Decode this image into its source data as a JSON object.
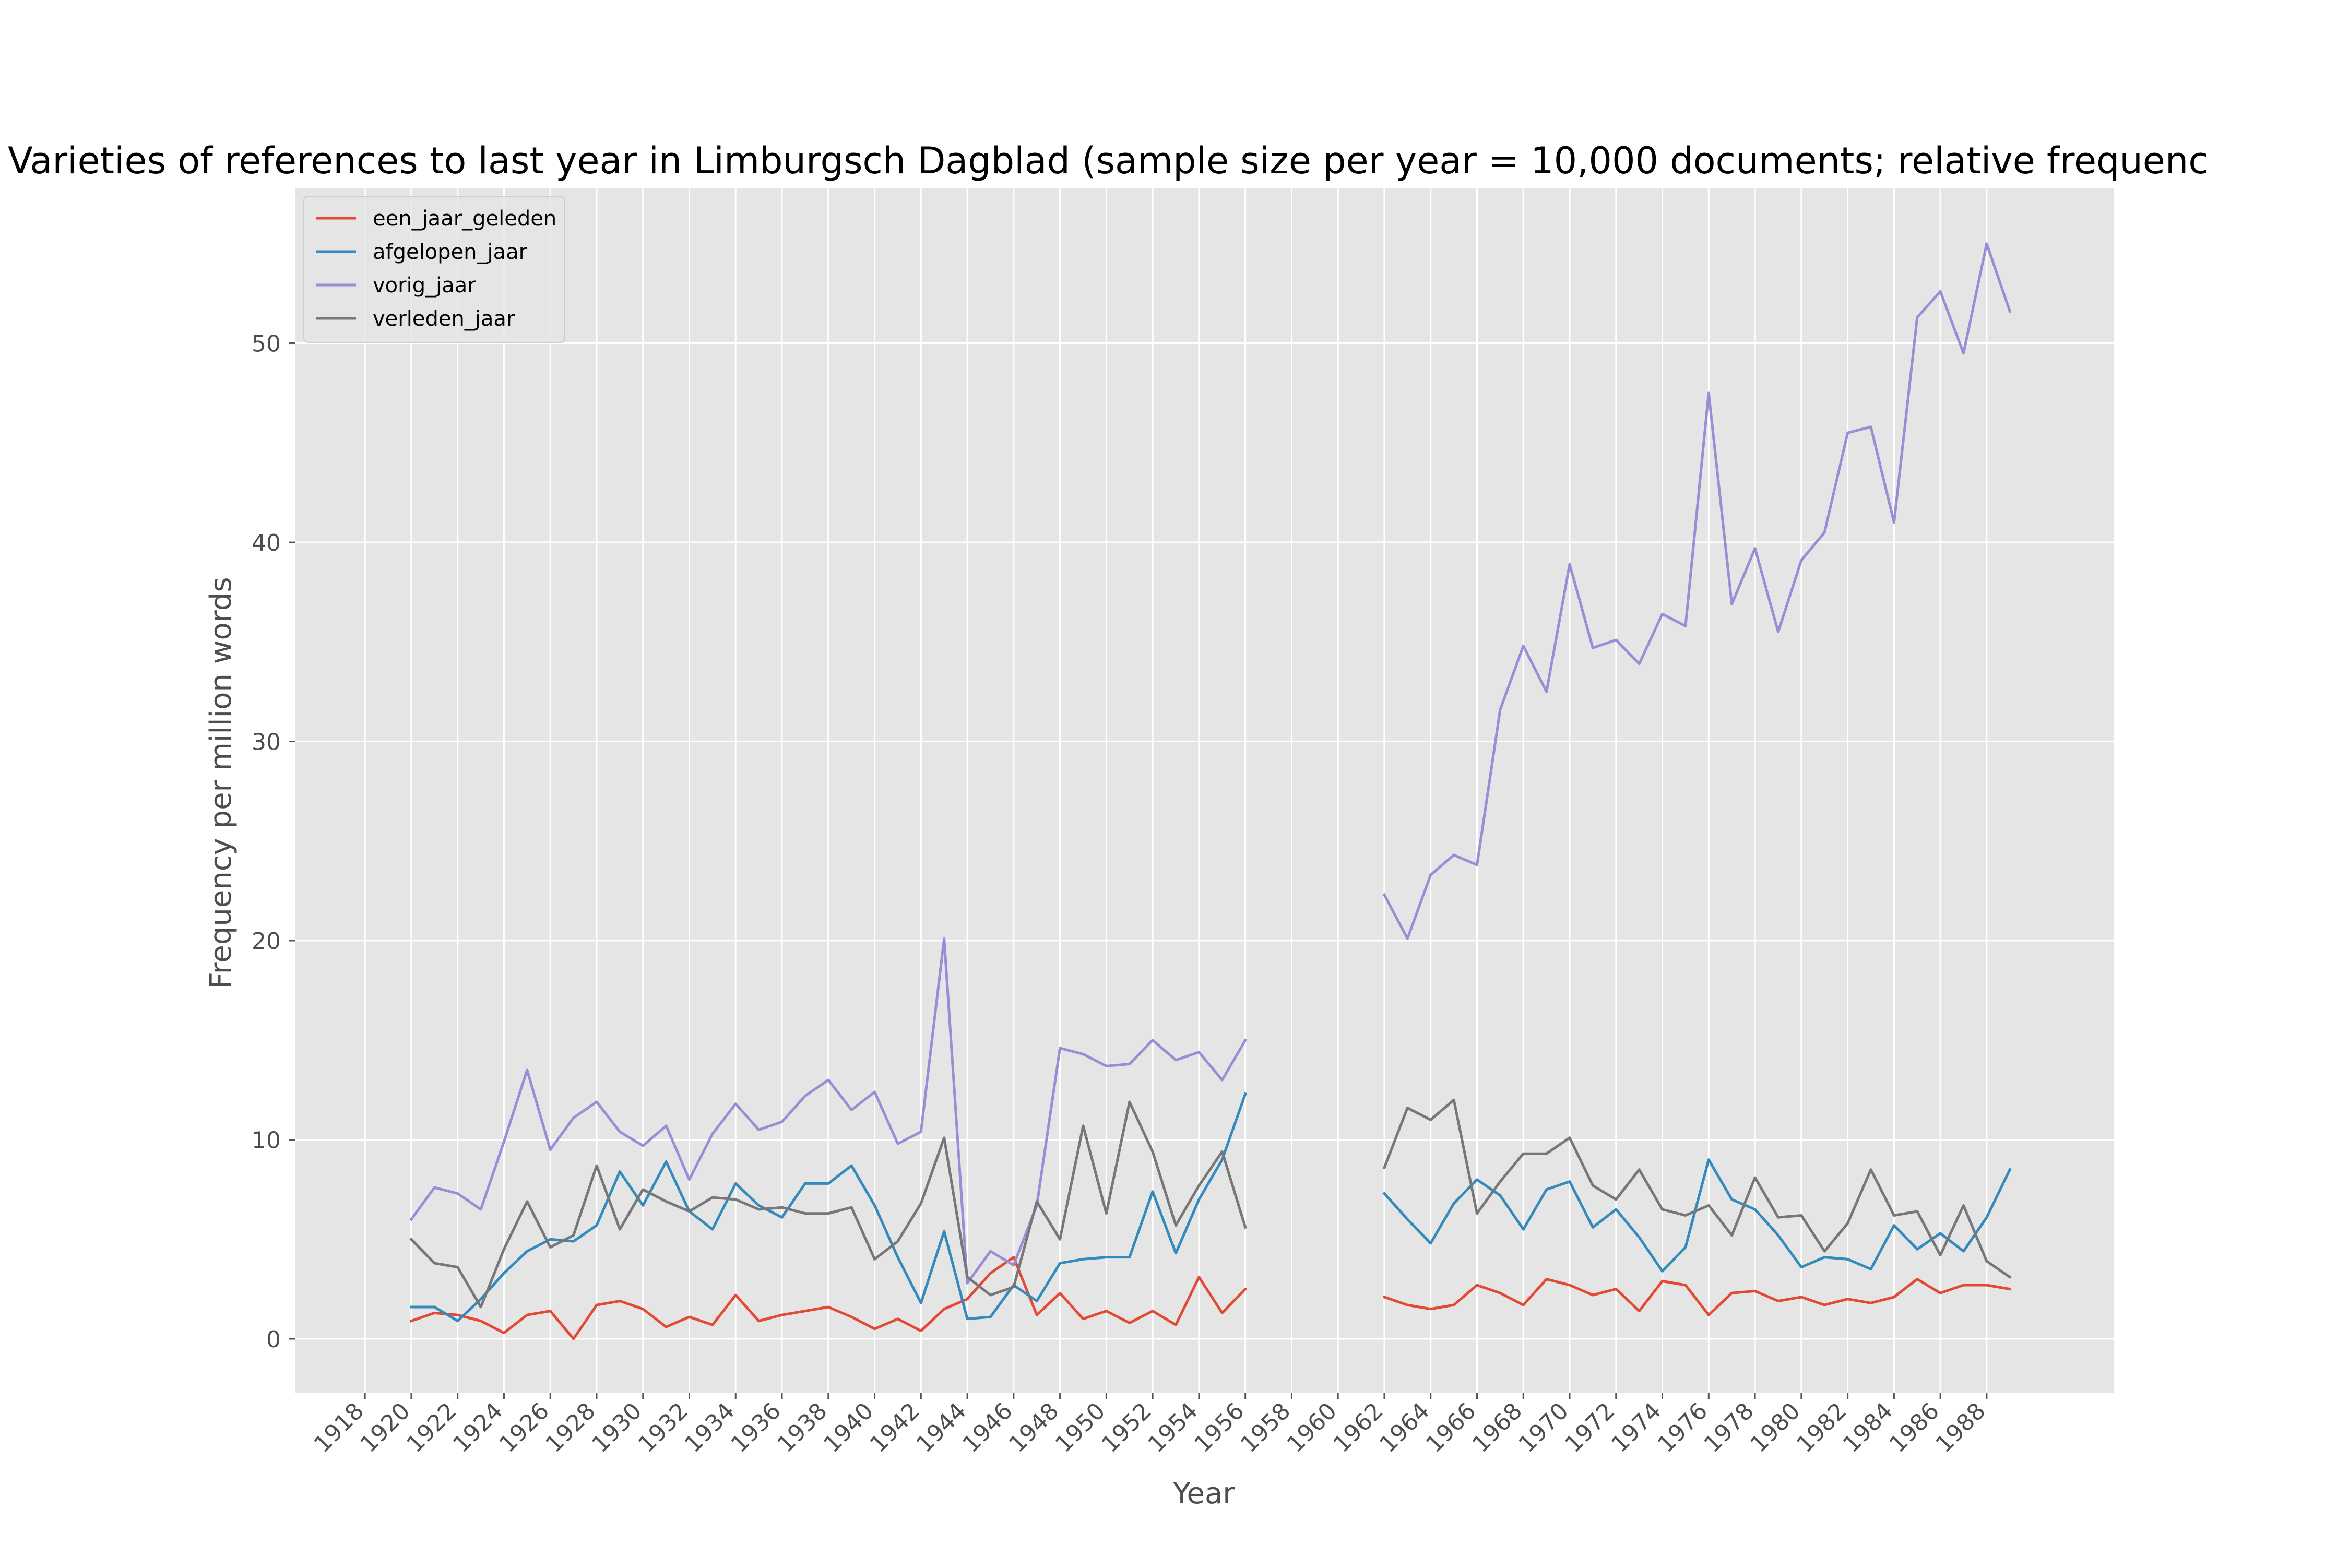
{
  "chart_data": {
    "type": "line",
    "title": "Varieties of references to last year in Limburgsch Dagblad (sample size per year = 10,000 documents; relative frequenc",
    "xlabel": "Year",
    "ylabel": "Frequency per million words",
    "xlim": [
      1915,
      1993.5
    ],
    "ylim": [
      -2.7,
      57.8
    ],
    "x_ticks": [
      1918,
      1920,
      1922,
      1924,
      1926,
      1928,
      1930,
      1932,
      1934,
      1936,
      1938,
      1940,
      1942,
      1944,
      1946,
      1948,
      1950,
      1952,
      1954,
      1956,
      1958,
      1960,
      1962,
      1964,
      1966,
      1968,
      1970,
      1972,
      1974,
      1976,
      1978,
      1980,
      1982,
      1984,
      1986,
      1988
    ],
    "x_tick_labels": [
      "1918",
      "1920",
      "1922",
      "1924",
      "1926",
      "1928",
      "1930",
      "1932",
      "1934",
      "1936",
      "1938",
      "1940",
      "1942",
      "1944",
      "1946",
      "1948",
      "1950",
      "1952",
      "1954",
      "1956",
      "1958",
      "1960",
      "1962",
      "1964",
      "1966",
      "1968",
      "1970",
      "1972",
      "1974",
      "1976",
      "1978",
      "1980",
      "1982",
      "1984",
      "1986",
      "1988"
    ],
    "y_ticks": [
      0,
      10,
      20,
      30,
      40,
      50
    ],
    "y_tick_labels": [
      "0",
      "10",
      "20",
      "30",
      "40",
      "50"
    ],
    "grid": true,
    "legend_position": "top-left",
    "background_color": "#e5e5e5",
    "series": [
      {
        "name": "een_jaar_geleden",
        "color": "#e24a33",
        "points": [
          [
            1920,
            0.9
          ],
          [
            1921,
            1.3
          ],
          [
            1922,
            1.2
          ],
          [
            1923,
            0.9
          ],
          [
            1924,
            0.3
          ],
          [
            1925,
            1.2
          ],
          [
            1926,
            1.4
          ],
          [
            1927,
            0.0
          ],
          [
            1928,
            1.7
          ],
          [
            1929,
            1.9
          ],
          [
            1930,
            1.5
          ],
          [
            1931,
            0.6
          ],
          [
            1932,
            1.1
          ],
          [
            1933,
            0.7
          ],
          [
            1934,
            2.2
          ],
          [
            1935,
            0.9
          ],
          [
            1936,
            1.2
          ],
          [
            1937,
            1.4
          ],
          [
            1938,
            1.6
          ],
          [
            1939,
            1.1
          ],
          [
            1940,
            0.5
          ],
          [
            1941,
            1.0
          ],
          [
            1942,
            0.4
          ],
          [
            1943,
            1.5
          ],
          [
            1944,
            2.0
          ],
          [
            1945,
            3.3
          ],
          [
            1946,
            4.1
          ],
          [
            1947,
            1.2
          ],
          [
            1948,
            2.3
          ],
          [
            1949,
            1.0
          ],
          [
            1950,
            1.4
          ],
          [
            1951,
            0.8
          ],
          [
            1952,
            1.4
          ],
          [
            1953,
            0.7
          ],
          [
            1954,
            3.1
          ],
          [
            1955,
            1.3
          ],
          [
            1956,
            2.5
          ],
          [
            1962,
            2.1
          ],
          [
            1963,
            1.7
          ],
          [
            1964,
            1.5
          ],
          [
            1965,
            1.7
          ],
          [
            1966,
            2.7
          ],
          [
            1967,
            2.3
          ],
          [
            1968,
            1.7
          ],
          [
            1969,
            3.0
          ],
          [
            1970,
            2.7
          ],
          [
            1971,
            2.2
          ],
          [
            1972,
            2.5
          ],
          [
            1973,
            1.4
          ],
          [
            1974,
            2.9
          ],
          [
            1975,
            2.7
          ],
          [
            1976,
            1.2
          ],
          [
            1977,
            2.3
          ],
          [
            1978,
            2.4
          ],
          [
            1979,
            1.9
          ],
          [
            1980,
            2.1
          ],
          [
            1981,
            1.7
          ],
          [
            1982,
            2.0
          ],
          [
            1983,
            1.8
          ],
          [
            1984,
            2.1
          ],
          [
            1985,
            3.0
          ],
          [
            1986,
            2.3
          ],
          [
            1987,
            2.7
          ],
          [
            1988,
            2.7
          ],
          [
            1989,
            2.5
          ]
        ]
      },
      {
        "name": "afgelopen_jaar",
        "color": "#348abd",
        "points": [
          [
            1920,
            1.6
          ],
          [
            1921,
            1.6
          ],
          [
            1922,
            0.9
          ],
          [
            1923,
            2.0
          ],
          [
            1924,
            3.3
          ],
          [
            1925,
            4.4
          ],
          [
            1926,
            5.0
          ],
          [
            1927,
            4.9
          ],
          [
            1928,
            5.7
          ],
          [
            1929,
            8.4
          ],
          [
            1930,
            6.7
          ],
          [
            1931,
            8.9
          ],
          [
            1932,
            6.4
          ],
          [
            1933,
            5.5
          ],
          [
            1934,
            7.8
          ],
          [
            1935,
            6.7
          ],
          [
            1936,
            6.1
          ],
          [
            1937,
            7.8
          ],
          [
            1938,
            7.8
          ],
          [
            1939,
            8.7
          ],
          [
            1940,
            6.7
          ],
          [
            1941,
            4.1
          ],
          [
            1942,
            1.8
          ],
          [
            1943,
            5.4
          ],
          [
            1944,
            1.0
          ],
          [
            1945,
            1.1
          ],
          [
            1946,
            2.7
          ],
          [
            1947,
            1.9
          ],
          [
            1948,
            3.8
          ],
          [
            1949,
            4.0
          ],
          [
            1950,
            4.1
          ],
          [
            1951,
            4.1
          ],
          [
            1952,
            7.4
          ],
          [
            1953,
            4.3
          ],
          [
            1954,
            7.0
          ],
          [
            1955,
            9.0
          ],
          [
            1956,
            12.3
          ],
          [
            1962,
            7.3
          ],
          [
            1963,
            6.0
          ],
          [
            1964,
            4.8
          ],
          [
            1965,
            6.8
          ],
          [
            1966,
            8.0
          ],
          [
            1967,
            7.2
          ],
          [
            1968,
            5.5
          ],
          [
            1969,
            7.5
          ],
          [
            1970,
            7.9
          ],
          [
            1971,
            5.6
          ],
          [
            1972,
            6.5
          ],
          [
            1973,
            5.1
          ],
          [
            1974,
            3.4
          ],
          [
            1975,
            4.6
          ],
          [
            1976,
            9.0
          ],
          [
            1977,
            7.0
          ],
          [
            1978,
            6.5
          ],
          [
            1979,
            5.2
          ],
          [
            1980,
            3.6
          ],
          [
            1981,
            4.1
          ],
          [
            1982,
            4.0
          ],
          [
            1983,
            3.5
          ],
          [
            1984,
            5.7
          ],
          [
            1985,
            4.5
          ],
          [
            1986,
            5.3
          ],
          [
            1987,
            4.4
          ],
          [
            1988,
            6.1
          ],
          [
            1989,
            8.5
          ]
        ]
      },
      {
        "name": "vorig_jaar",
        "color": "#988ed5",
        "points": [
          [
            1920,
            6.0
          ],
          [
            1921,
            7.6
          ],
          [
            1922,
            7.3
          ],
          [
            1923,
            6.5
          ],
          [
            1924,
            9.9
          ],
          [
            1925,
            13.5
          ],
          [
            1926,
            9.5
          ],
          [
            1927,
            11.1
          ],
          [
            1928,
            11.9
          ],
          [
            1929,
            10.4
          ],
          [
            1930,
            9.7
          ],
          [
            1931,
            10.7
          ],
          [
            1932,
            8.0
          ],
          [
            1933,
            10.3
          ],
          [
            1934,
            11.8
          ],
          [
            1935,
            10.5
          ],
          [
            1936,
            10.9
          ],
          [
            1937,
            12.2
          ],
          [
            1938,
            13.0
          ],
          [
            1939,
            11.5
          ],
          [
            1940,
            12.4
          ],
          [
            1941,
            9.8
          ],
          [
            1942,
            10.4
          ],
          [
            1943,
            20.1
          ],
          [
            1944,
            2.8
          ],
          [
            1945,
            4.4
          ],
          [
            1946,
            3.7
          ],
          [
            1947,
            6.7
          ],
          [
            1948,
            14.6
          ],
          [
            1949,
            14.3
          ],
          [
            1950,
            13.7
          ],
          [
            1951,
            13.8
          ],
          [
            1952,
            15.0
          ],
          [
            1953,
            14.0
          ],
          [
            1954,
            14.4
          ],
          [
            1955,
            13.0
          ],
          [
            1956,
            15.0
          ],
          [
            1962,
            22.3
          ],
          [
            1963,
            20.1
          ],
          [
            1964,
            23.3
          ],
          [
            1965,
            24.3
          ],
          [
            1966,
            23.8
          ],
          [
            1967,
            31.6
          ],
          [
            1968,
            34.8
          ],
          [
            1969,
            32.5
          ],
          [
            1970,
            38.9
          ],
          [
            1971,
            34.7
          ],
          [
            1972,
            35.1
          ],
          [
            1973,
            33.9
          ],
          [
            1974,
            36.4
          ],
          [
            1975,
            35.8
          ],
          [
            1976,
            47.5
          ],
          [
            1977,
            36.9
          ],
          [
            1978,
            39.7
          ],
          [
            1979,
            35.5
          ],
          [
            1980,
            39.1
          ],
          [
            1981,
            40.5
          ],
          [
            1982,
            45.5
          ],
          [
            1983,
            45.8
          ],
          [
            1984,
            41.0
          ],
          [
            1985,
            51.3
          ],
          [
            1986,
            52.6
          ],
          [
            1987,
            49.5
          ],
          [
            1988,
            55.0
          ],
          [
            1989,
            51.6
          ]
        ]
      },
      {
        "name": "verleden_jaar",
        "color": "#777777",
        "points": [
          [
            1920,
            5.0
          ],
          [
            1921,
            3.8
          ],
          [
            1922,
            3.6
          ],
          [
            1923,
            1.6
          ],
          [
            1924,
            4.5
          ],
          [
            1925,
            6.9
          ],
          [
            1926,
            4.6
          ],
          [
            1927,
            5.2
          ],
          [
            1928,
            8.7
          ],
          [
            1929,
            5.5
          ],
          [
            1930,
            7.5
          ],
          [
            1931,
            6.9
          ],
          [
            1932,
            6.4
          ],
          [
            1933,
            7.1
          ],
          [
            1934,
            7.0
          ],
          [
            1935,
            6.5
          ],
          [
            1936,
            6.6
          ],
          [
            1937,
            6.3
          ],
          [
            1938,
            6.3
          ],
          [
            1939,
            6.6
          ],
          [
            1940,
            4.0
          ],
          [
            1941,
            4.9
          ],
          [
            1942,
            6.8
          ],
          [
            1943,
            10.1
          ],
          [
            1944,
            3.1
          ],
          [
            1945,
            2.2
          ],
          [
            1946,
            2.6
          ],
          [
            1947,
            6.9
          ],
          [
            1948,
            5.0
          ],
          [
            1949,
            10.7
          ],
          [
            1950,
            6.3
          ],
          [
            1951,
            11.9
          ],
          [
            1952,
            9.4
          ],
          [
            1953,
            5.7
          ],
          [
            1954,
            7.7
          ],
          [
            1955,
            9.4
          ],
          [
            1956,
            5.6
          ],
          [
            1962,
            8.6
          ],
          [
            1963,
            11.6
          ],
          [
            1964,
            11.0
          ],
          [
            1965,
            12.0
          ],
          [
            1966,
            6.3
          ],
          [
            1967,
            7.9
          ],
          [
            1968,
            9.3
          ],
          [
            1969,
            9.3
          ],
          [
            1970,
            10.1
          ],
          [
            1971,
            7.7
          ],
          [
            1972,
            7.0
          ],
          [
            1973,
            8.5
          ],
          [
            1974,
            6.5
          ],
          [
            1975,
            6.2
          ],
          [
            1976,
            6.7
          ],
          [
            1977,
            5.2
          ],
          [
            1978,
            8.1
          ],
          [
            1979,
            6.1
          ],
          [
            1980,
            6.2
          ],
          [
            1981,
            4.4
          ],
          [
            1982,
            5.8
          ],
          [
            1983,
            8.5
          ],
          [
            1984,
            6.2
          ],
          [
            1985,
            6.4
          ],
          [
            1986,
            4.2
          ],
          [
            1987,
            6.7
          ],
          [
            1988,
            3.9
          ],
          [
            1989,
            3.1
          ]
        ]
      }
    ]
  }
}
